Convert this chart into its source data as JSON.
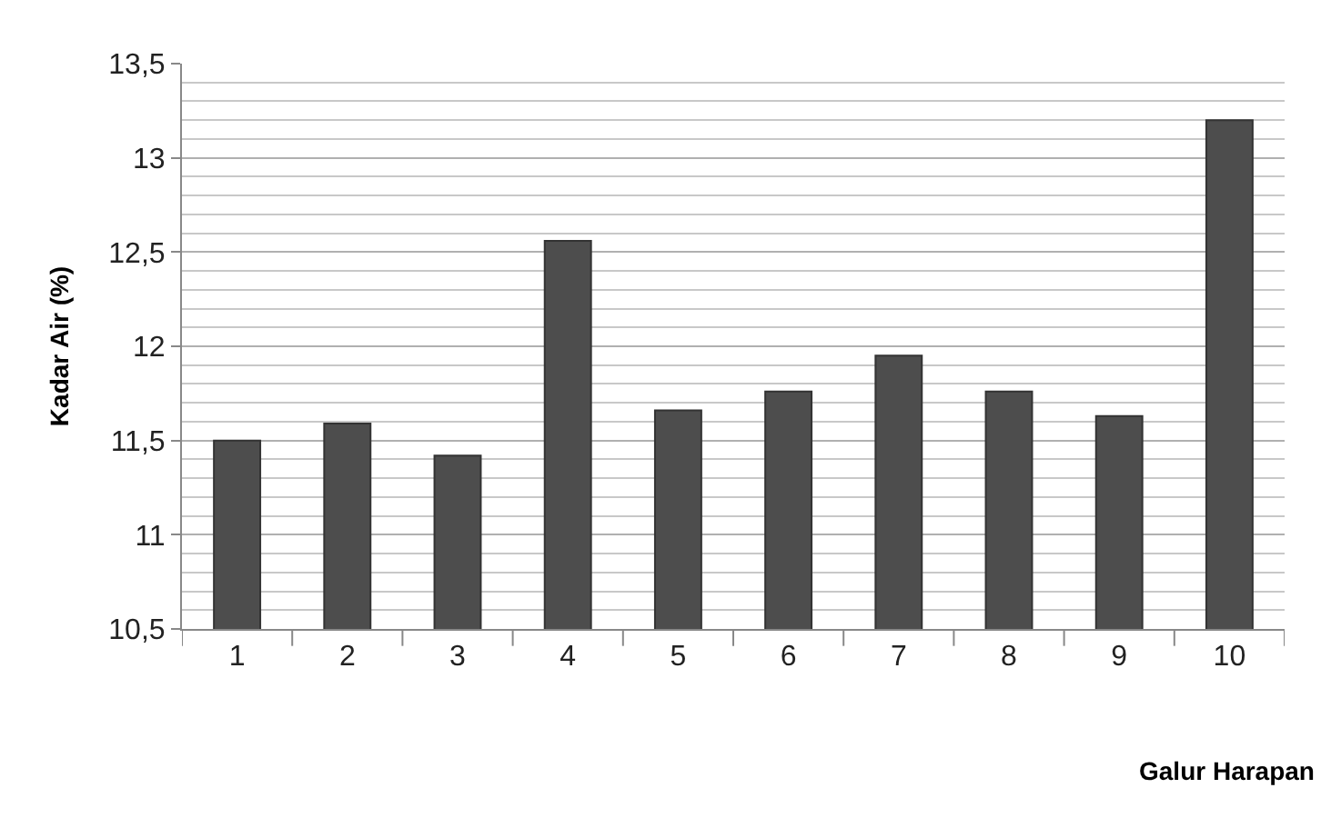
{
  "chart_data": {
    "type": "bar",
    "xlabel": "Galur Harapan",
    "ylabel": "Kadar Air (%)",
    "categories": [
      "1",
      "2",
      "3",
      "4",
      "5",
      "6",
      "7",
      "8",
      "9",
      "10"
    ],
    "values": [
      11.5,
      11.59,
      11.42,
      12.56,
      11.66,
      11.76,
      11.95,
      11.76,
      11.63,
      13.2
    ],
    "color": "#4d4d4d",
    "ylim": [
      10.5,
      13.5
    ],
    "yticks": [
      {
        "value": 10.5,
        "label": "10,5"
      },
      11,
      {
        "value": 11.5,
        "label": "11,5"
      },
      12,
      {
        "value": 12.5,
        "label": "12,5"
      },
      13,
      {
        "value": 13.5,
        "label": "13,5"
      }
    ],
    "grid": true
  }
}
